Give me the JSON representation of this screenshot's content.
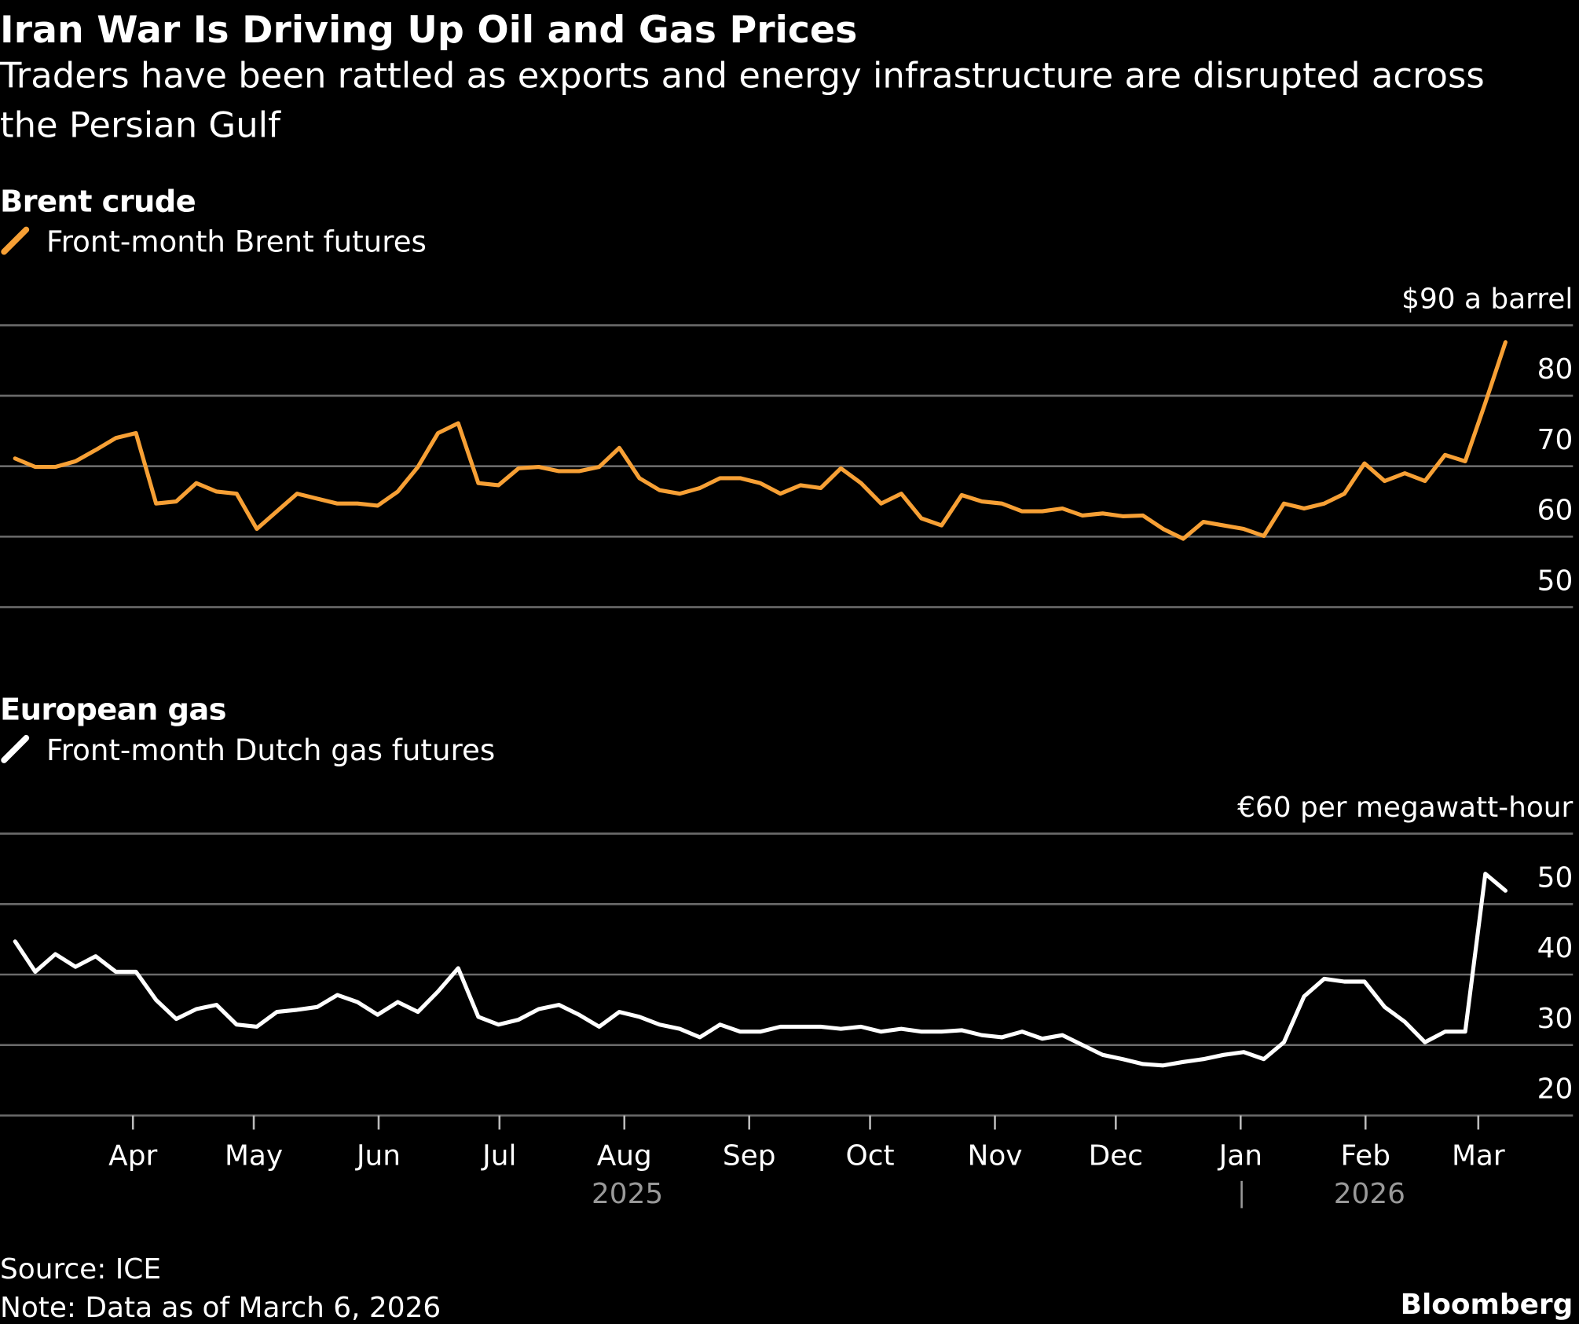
{
  "title": "Iran War Is Driving Up Oil and Gas Prices",
  "subtitle": "Traders have been rattled as exports and energy infrastructure are disrupted across the Persian Gulf",
  "source": "Source: ICE",
  "note": "Note: Data as of March 6, 2026",
  "brand": "Bloomberg",
  "chart_data": [
    {
      "type": "line",
      "title": "Brent crude",
      "series": [
        {
          "name": "Front-month Brent futures",
          "color": "#f7a035",
          "values": [
            71.1,
            69.9,
            69.9,
            70.7,
            72.3,
            74.0,
            74.7,
            64.7,
            65.0,
            67.6,
            66.4,
            66.1,
            61.1,
            63.6,
            66.1,
            65.4,
            64.7,
            64.7,
            64.4,
            66.4,
            69.9,
            74.7,
            76.1,
            67.6,
            67.3,
            69.7,
            69.9,
            69.3,
            69.3,
            69.9,
            72.6,
            68.3,
            66.6,
            66.1,
            66.9,
            68.3,
            68.3,
            67.6,
            66.1,
            67.3,
            66.9,
            69.7,
            67.6,
            64.7,
            66.1,
            62.6,
            61.6,
            65.9,
            65.0,
            64.7,
            63.6,
            63.6,
            64.0,
            63.0,
            63.3,
            62.9,
            63.0,
            61.1,
            59.7,
            62.1,
            61.6,
            61.1,
            60.1,
            64.7,
            64.0,
            64.7,
            66.1,
            70.4,
            67.9,
            69.0,
            67.9,
            71.6,
            70.7,
            79.0,
            87.6
          ]
        }
      ],
      "xlim": [
        -0.75,
        77.35
      ],
      "ylim": [
        50,
        90
      ],
      "yticks": [
        50,
        60,
        70,
        80,
        {
          "value": 90,
          "label": "$90 a barrel"
        }
      ],
      "grid": true
    },
    {
      "type": "line",
      "title": "European gas",
      "series": [
        {
          "name": "Front-month Dutch gas futures",
          "color": "#ffffff",
          "values": [
            44.7,
            40.4,
            42.9,
            41.1,
            42.6,
            40.4,
            40.4,
            36.4,
            33.7,
            35.1,
            35.7,
            32.9,
            32.6,
            34.7,
            35.0,
            35.4,
            37.1,
            36.1,
            34.3,
            36.1,
            34.7,
            37.6,
            40.9,
            34.0,
            32.9,
            33.6,
            35.1,
            35.7,
            34.3,
            32.6,
            34.7,
            34.0,
            32.9,
            32.3,
            31.1,
            32.9,
            31.9,
            31.9,
            32.6,
            32.6,
            32.6,
            32.3,
            32.6,
            31.9,
            32.3,
            31.9,
            31.9,
            32.1,
            31.4,
            31.1,
            31.9,
            30.9,
            31.4,
            30.0,
            28.6,
            28.0,
            27.3,
            27.1,
            27.6,
            28.0,
            28.6,
            29.0,
            28.0,
            30.4,
            36.9,
            39.4,
            39.0,
            39.0,
            35.4,
            33.3,
            30.4,
            31.9,
            31.9,
            54.3,
            51.9
          ]
        }
      ],
      "xlim": [
        -0.75,
        77.35
      ],
      "ylim": [
        20,
        60
      ],
      "yticks": [
        20,
        30,
        40,
        50,
        {
          "value": 60,
          "label": "€60 per megawatt-hour"
        }
      ],
      "xticks": [
        {
          "value": 5.85,
          "label": "Apr"
        },
        {
          "value": 11.85,
          "label": "May"
        },
        {
          "value": 18.05,
          "label": "Jun"
        },
        {
          "value": 24.05,
          "label": "Jul"
        },
        {
          "value": 30.25,
          "label": "Aug"
        },
        {
          "value": 36.45,
          "label": "Sep"
        },
        {
          "value": 42.45,
          "label": "Oct"
        },
        {
          "value": 48.65,
          "label": "Nov"
        },
        {
          "value": 54.65,
          "label": "Dec"
        },
        {
          "value": 60.85,
          "label": "Jan"
        },
        {
          "value": 67.05,
          "label": "Feb"
        },
        {
          "value": 72.65,
          "label": "Mar"
        }
      ],
      "year_labels": [
        "2025",
        "2026"
      ],
      "grid": true
    }
  ]
}
